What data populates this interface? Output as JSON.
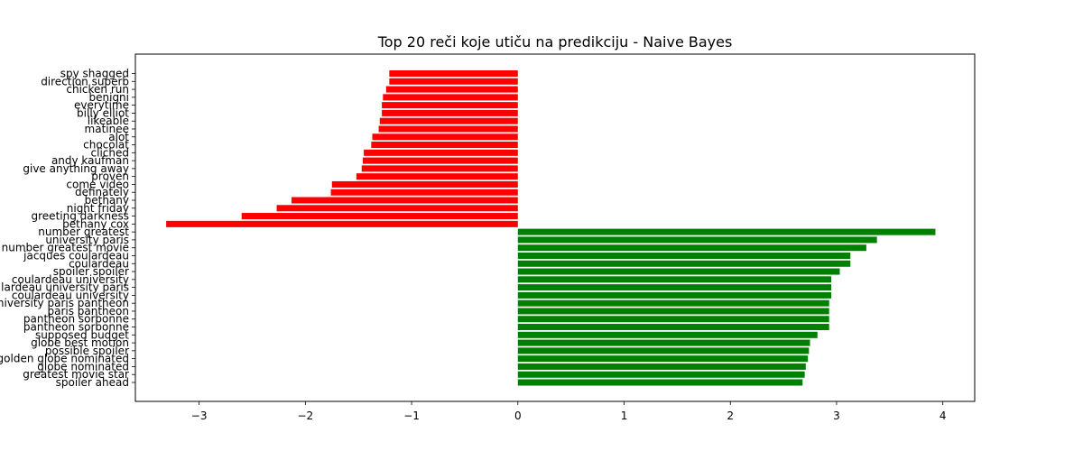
{
  "chart_data": {
    "type": "bar",
    "orientation": "horizontal",
    "title": "Top 20 reči koje utiču na predikciju - Naive Bayes",
    "xlabel": "",
    "ylabel": "",
    "xlim": [
      -3.6,
      4.3
    ],
    "xticks": [
      {
        "value": -3,
        "label": "−3"
      },
      {
        "value": -2,
        "label": "−2"
      },
      {
        "value": -1,
        "label": "−1"
      },
      {
        "value": 0,
        "label": "0"
      },
      {
        "value": 1,
        "label": "1"
      },
      {
        "value": 2,
        "label": "2"
      },
      {
        "value": 3,
        "label": "3"
      },
      {
        "value": 4,
        "label": "4"
      }
    ],
    "grid": false,
    "colors": {
      "negative": "#ff0000",
      "positive": "#008000"
    },
    "categories": [
      "spy shagged",
      "direction superb",
      "chicken run",
      "benigni",
      "everytime",
      "billy elliot",
      "likeable",
      "matinee",
      "alot",
      "chocolat",
      "cliched",
      "andy kaufman",
      "give anything away",
      "proven",
      "come video",
      "definately",
      "bethany",
      "night friday",
      "greeting darkness",
      "bethany cox",
      "number greatest",
      "university paris",
      "number greatest movie",
      "jacques coulardeau",
      "coulardeau",
      "spoiler spoiler",
      "coulardeau university",
      "coulardeau university paris",
      "coulardeau university",
      "university paris pantheon",
      "paris pantheon",
      "pantheon sorbonne",
      "pantheon sorbonne",
      "supposed budget",
      "globe best motion",
      "possible spoiler",
      "golden globe nominated",
      "globe nominated",
      "greatest movie star",
      "spoiler ahead"
    ],
    "values": [
      -1.21,
      -1.21,
      -1.24,
      -1.27,
      -1.28,
      -1.28,
      -1.3,
      -1.31,
      -1.37,
      -1.38,
      -1.45,
      -1.46,
      -1.47,
      -1.52,
      -1.75,
      -1.76,
      -2.13,
      -2.27,
      -2.6,
      -3.31,
      3.93,
      3.38,
      3.28,
      3.13,
      3.13,
      3.03,
      2.95,
      2.95,
      2.95,
      2.93,
      2.93,
      2.93,
      2.93,
      2.82,
      2.75,
      2.74,
      2.73,
      2.71,
      2.7,
      2.68
    ]
  }
}
